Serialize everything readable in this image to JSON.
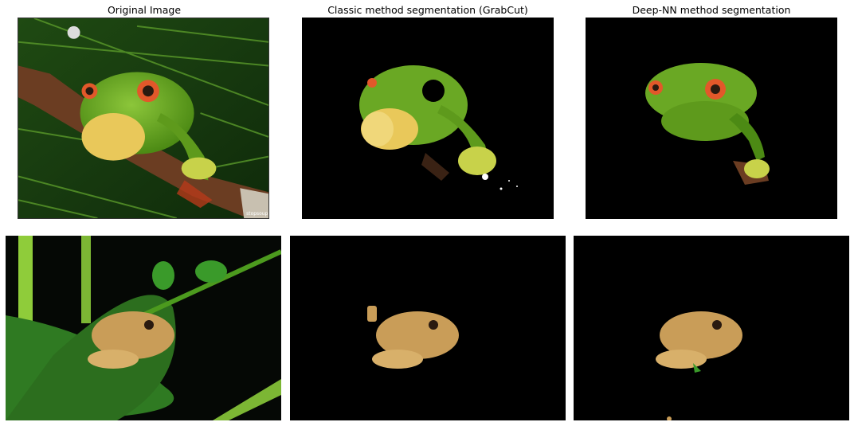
{
  "figure": {
    "columns": [
      "Original Image",
      "Classic method segmentation (GrabCut)",
      "Deep-NN method segmentation"
    ],
    "watermark_text": "stopsoup"
  },
  "colors": {
    "background": "#ffffff",
    "mask_background": "#000000",
    "frog1_green": "#5e9a1c",
    "frog1_eye": "#e2582a",
    "frog2_tan": "#c99d58",
    "branch_brown": "#6b3d22",
    "leaf_green": "#2f7a22"
  }
}
